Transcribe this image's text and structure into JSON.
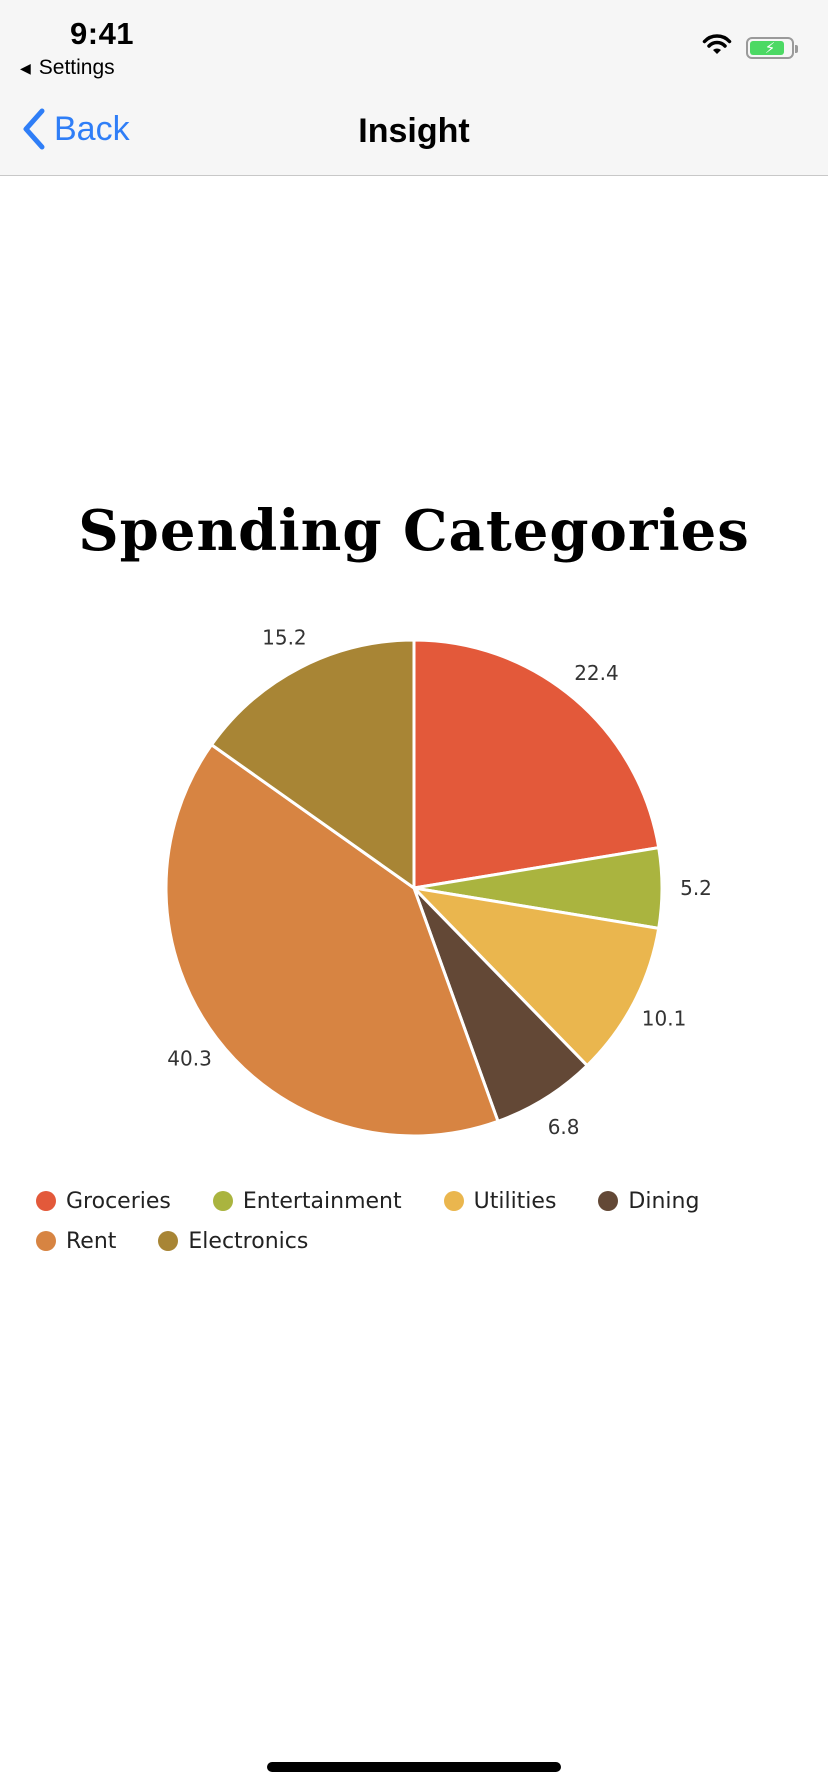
{
  "status_bar": {
    "time": "9:41",
    "back_app_label": "Settings"
  },
  "nav": {
    "back_label": "Back",
    "title": "Insight"
  },
  "colors": {
    "accent": "#2f7ef7",
    "battery": "#4cd964"
  },
  "icons": {
    "wifi": "wifi-icon",
    "battery": "battery-charging-icon",
    "back": "chevron-left-icon"
  },
  "chart_data": {
    "type": "pie",
    "title": "Spending Categories",
    "slices": [
      {
        "label": "Groceries",
        "value": 22.4,
        "color": "#e3593a"
      },
      {
        "label": "Entertainment",
        "value": 5.2,
        "color": "#aab43f"
      },
      {
        "label": "Utilities",
        "value": 10.1,
        "color": "#eab64e"
      },
      {
        "label": "Dining",
        "value": 6.8,
        "color": "#634836"
      },
      {
        "label": "Rent",
        "value": 40.3,
        "color": "#d78442"
      },
      {
        "label": "Electronics",
        "value": 15.2,
        "color": "#a88535"
      }
    ],
    "legend_position": "bottom"
  }
}
